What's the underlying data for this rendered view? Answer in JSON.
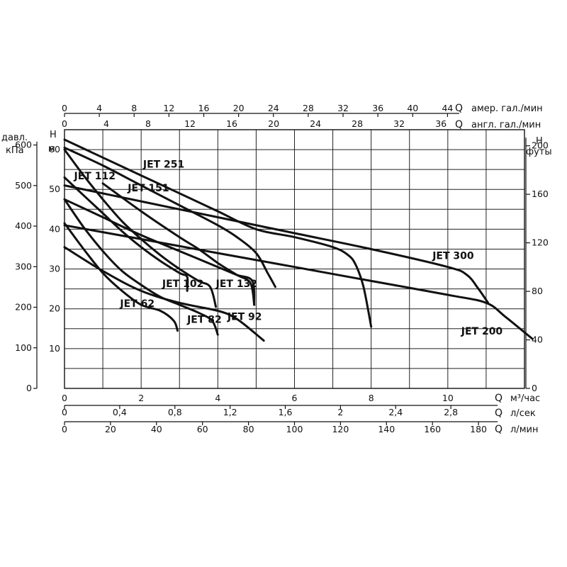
{
  "chart_data": {
    "type": "line",
    "title": "",
    "x_axis": {
      "label": "м³/час",
      "prefix": "Q",
      "min": 0,
      "max": 12,
      "ticks": [
        "0",
        "2",
        "4",
        "6",
        "8",
        "10"
      ]
    },
    "x_axis_ls": {
      "label": "л/сек",
      "prefix": "Q",
      "ticks": [
        "0",
        "0,4",
        "0,8",
        "1,2",
        "1,6",
        "2",
        "2,4",
        "2,8"
      ]
    },
    "x_axis_lmin": {
      "label": "л/мин",
      "prefix": "Q",
      "ticks": [
        "0",
        "20",
        "40",
        "60",
        "80",
        "100",
        "120",
        "140",
        "160",
        "180"
      ]
    },
    "top_axis_us": {
      "label": "амер. гал./мин",
      "prefix": "Q",
      "ticks": [
        "0",
        "4",
        "8",
        "12",
        "16",
        "20",
        "24",
        "28",
        "32",
        "36",
        "40",
        "44"
      ]
    },
    "top_axis_uk": {
      "label": "англ. гал./мин",
      "prefix": "Q",
      "ticks": [
        "0",
        "4",
        "8",
        "12",
        "16",
        "20",
        "24",
        "28",
        "32",
        "36"
      ]
    },
    "y_axis_m": {
      "label_line1": "H",
      "label_line2": "м",
      "min": 0,
      "max": 65,
      "ticks": [
        "10",
        "20",
        "30",
        "40",
        "50",
        "60"
      ]
    },
    "y_axis_kpa": {
      "label_line1": "давл.",
      "label_line2": "кПа",
      "ticks": [
        "0",
        "100",
        "200",
        "300",
        "400",
        "500",
        "600"
      ]
    },
    "y_axis_ft": {
      "label_line1": "H",
      "label_line2": "футы",
      "ticks": [
        "0",
        "40",
        "80",
        "120",
        "160",
        "200"
      ]
    },
    "grid": true,
    "series": [
      {
        "name": "JET 62",
        "points": [
          [
            0,
            41.5
          ],
          [
            0.5,
            35
          ],
          [
            1,
            29
          ],
          [
            1.5,
            24.5
          ],
          [
            2,
            21
          ],
          [
            2.5,
            19.5
          ],
          [
            2.85,
            17
          ],
          [
            2.95,
            14.5
          ]
        ]
      },
      {
        "name": "JET 82",
        "points": [
          [
            0,
            47.5
          ],
          [
            0.5,
            40.5
          ],
          [
            1,
            34.5
          ],
          [
            1.5,
            29.5
          ],
          [
            2,
            26
          ],
          [
            2.5,
            23
          ],
          [
            3,
            21
          ],
          [
            3.5,
            19
          ],
          [
            3.85,
            17
          ],
          [
            4,
            13.5
          ]
        ]
      },
      {
        "name": "JET 92",
        "points": [
          [
            0,
            35.5
          ],
          [
            1,
            29.5
          ],
          [
            2,
            24.5
          ],
          [
            3,
            21.5
          ],
          [
            4,
            19.5
          ],
          [
            4.4,
            18
          ],
          [
            4.7,
            16
          ],
          [
            5.2,
            12
          ]
        ]
      },
      {
        "name": "JET 102",
        "points": [
          [
            0,
            53
          ],
          [
            0.5,
            48.5
          ],
          [
            1,
            44
          ],
          [
            1.5,
            39.5
          ],
          [
            2,
            35.5
          ],
          [
            2.5,
            32
          ],
          [
            3,
            29
          ],
          [
            3.2,
            28
          ],
          [
            3.2,
            24.5
          ]
        ]
      },
      {
        "name": "JET 112",
        "points": [
          [
            0,
            60
          ],
          [
            0.5,
            53.5
          ],
          [
            1,
            47.5
          ],
          [
            1.5,
            42
          ],
          [
            2,
            37.5
          ],
          [
            2.5,
            33.5
          ],
          [
            3,
            30
          ],
          [
            3.5,
            27
          ],
          [
            3.8,
            25.5
          ],
          [
            3.95,
            20.5
          ]
        ]
      },
      {
        "name": "JET 132",
        "points": [
          [
            0,
            47.5
          ],
          [
            1,
            43
          ],
          [
            2,
            38.5
          ],
          [
            3,
            34.5
          ],
          [
            4,
            30.5
          ],
          [
            4.5,
            28.5
          ],
          [
            4.9,
            27
          ],
          [
            4.95,
            21
          ]
        ]
      },
      {
        "name": "JET 151",
        "points": [
          [
            1,
            51.5
          ],
          [
            2,
            44.5
          ],
          [
            3,
            38
          ],
          [
            3.5,
            35
          ],
          [
            4,
            31.5
          ],
          [
            4.5,
            28.5
          ],
          [
            4.85,
            26.5
          ],
          [
            4.95,
            21
          ]
        ]
      },
      {
        "name": "JET 251",
        "points": [
          [
            0,
            60.5
          ],
          [
            1,
            56
          ],
          [
            2,
            51
          ],
          [
            3,
            46
          ],
          [
            4,
            41
          ],
          [
            4.5,
            38
          ],
          [
            5,
            34
          ],
          [
            5.3,
            29
          ],
          [
            5.5,
            25.5
          ]
        ]
      },
      {
        "name": "JET 200",
        "points": [
          [
            0,
            41
          ],
          [
            2,
            37.5
          ],
          [
            4,
            34
          ],
          [
            6,
            30.5
          ],
          [
            8,
            27
          ],
          [
            10,
            23.5
          ],
          [
            11,
            21.5
          ],
          [
            11.5,
            18
          ],
          [
            12.2,
            12.5
          ]
        ]
      },
      {
        "name": "JET 300",
        "points": [
          [
            0,
            62.5
          ],
          [
            1,
            58
          ],
          [
            2,
            53.5
          ],
          [
            3,
            49
          ],
          [
            4,
            44.5
          ],
          [
            5,
            40
          ],
          [
            6,
            38
          ],
          [
            7,
            35.5
          ],
          [
            7.4,
            33.5
          ],
          [
            7.6,
            31
          ],
          [
            7.8,
            25.5
          ],
          [
            8,
            15.5
          ]
        ]
      },
      {
        "name": "JET 300",
        "points": [
          [
            0,
            51
          ],
          [
            2,
            47
          ],
          [
            4,
            43
          ],
          [
            6,
            39
          ],
          [
            8,
            35
          ],
          [
            10,
            30.5
          ],
          [
            10.5,
            28.5
          ],
          [
            10.8,
            25
          ],
          [
            11.05,
            21.5
          ]
        ]
      }
    ],
    "curve_labels": [
      {
        "text": "JET 251",
        "x": 2.05,
        "y": 55.5
      },
      {
        "text": "JET 112",
        "x": 0.25,
        "y": 52.5
      },
      {
        "text": "JET 151",
        "x": 1.65,
        "y": 49.5
      },
      {
        "text": "JET 102",
        "x": 2.55,
        "y": 25.5
      },
      {
        "text": "JET 132",
        "x": 3.95,
        "y": 25.5
      },
      {
        "text": "JET 62",
        "x": 1.45,
        "y": 20.5
      },
      {
        "text": "JET 82",
        "x": 3.2,
        "y": 16.5
      },
      {
        "text": "JET 92",
        "x": 4.25,
        "y": 17.2
      },
      {
        "text": "JET 300",
        "x": 9.6,
        "y": 32.5
      },
      {
        "text": "JET 200",
        "x": 10.35,
        "y": 13.5
      }
    ]
  }
}
